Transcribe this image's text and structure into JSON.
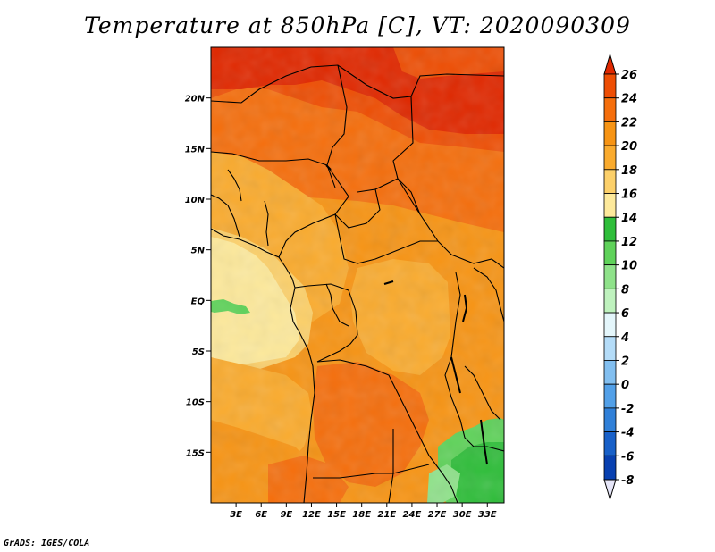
{
  "title": "Temperature at 850hPa [C], VT: 2020090309",
  "credit": "GrADS: IGES/COLA",
  "map": {
    "variable": "Temperature at 850hPa",
    "units": "C",
    "valid_time": "2020090309",
    "lon_range": [
      0,
      35
    ],
    "lat_range": [
      -20,
      25
    ],
    "x_ticks": [
      {
        "value": 3,
        "label": "3E"
      },
      {
        "value": 6,
        "label": "6E"
      },
      {
        "value": 9,
        "label": "9E"
      },
      {
        "value": 12,
        "label": "12E"
      },
      {
        "value": 15,
        "label": "15E"
      },
      {
        "value": 18,
        "label": "18E"
      },
      {
        "value": 21,
        "label": "21E"
      },
      {
        "value": 24,
        "label": "24E"
      },
      {
        "value": 27,
        "label": "27E"
      },
      {
        "value": 30,
        "label": "30E"
      },
      {
        "value": 33,
        "label": "33E"
      }
    ],
    "y_ticks": [
      {
        "value": 20,
        "label": "20N"
      },
      {
        "value": 15,
        "label": "15N"
      },
      {
        "value": 10,
        "label": "10N"
      },
      {
        "value": 5,
        "label": "5N"
      },
      {
        "value": 0,
        "label": "EQ"
      },
      {
        "value": -5,
        "label": "5S"
      },
      {
        "value": -10,
        "label": "10S"
      },
      {
        "value": -15,
        "label": "15S"
      }
    ]
  },
  "colorbar": {
    "levels": [
      26,
      24,
      22,
      20,
      18,
      16,
      14,
      12,
      10,
      8,
      6,
      4,
      2,
      0,
      -2,
      -4,
      -6,
      -8
    ],
    "labels": [
      "26",
      "24",
      "22",
      "20",
      "18",
      "16",
      "14",
      "12",
      "10",
      "8",
      "6",
      "4",
      "2",
      "0",
      "-2",
      "-4",
      "-6",
      "-8"
    ],
    "colors": [
      "#e02800",
      "#ee4e04",
      "#f56e0c",
      "#f79414",
      "#faab2e",
      "#fcd06a",
      "#fde99b",
      "#2fbe3a",
      "#5fd25a",
      "#8fe28a",
      "#bff2be",
      "#e4f6fb",
      "#b4dcf8",
      "#82bff0",
      "#52a0e8",
      "#3080d8",
      "#1860c8",
      "#0840b0",
      "#102878"
    ],
    "top_color": "#e02800",
    "bottom_color": "#e6e6f8"
  },
  "regions": [
    {
      "name": "north-sahara-hot",
      "color": "#e02800"
    },
    {
      "name": "sahel-warm",
      "color": "#f56e0c"
    },
    {
      "name": "central-africa-warm",
      "color": "#f79414"
    },
    {
      "name": "gulf-of-guinea-cool",
      "color": "#fcd06a"
    },
    {
      "name": "ocean-cool",
      "color": "#fde99b"
    },
    {
      "name": "southeast-green",
      "color": "#5fd25a"
    }
  ]
}
